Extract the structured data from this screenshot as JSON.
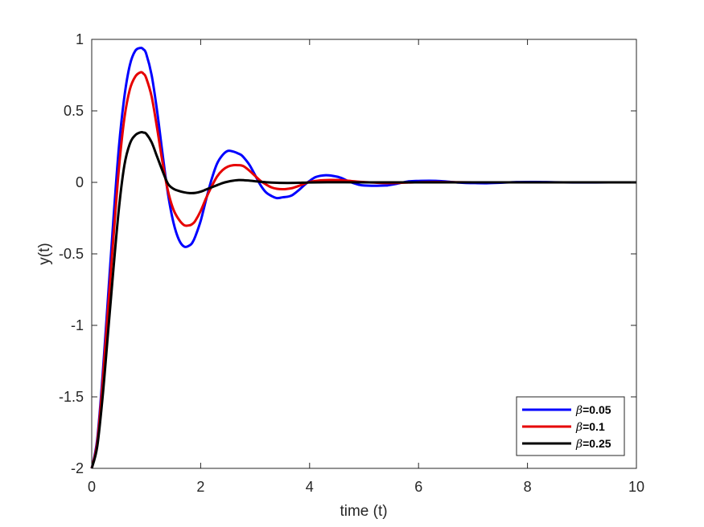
{
  "chart_data": {
    "type": "line",
    "title": "",
    "xlabel": "time (t)",
    "ylabel": "y(t)",
    "xlim": [
      0,
      10
    ],
    "ylim": [
      -2,
      1
    ],
    "xticks": [
      "0",
      "2",
      "4",
      "6",
      "8",
      "10"
    ],
    "xtick_values": [
      0,
      2,
      4,
      6,
      8,
      10
    ],
    "yticks": [
      "-2",
      "-1.5",
      "-1",
      "-0.5",
      "0",
      "0.5",
      "1"
    ],
    "ytick_values": [
      -2,
      -1.5,
      -1,
      -0.5,
      0,
      0.5,
      1
    ],
    "grid": false,
    "box": true,
    "legend_position": "bottom-right",
    "series": [
      {
        "name": "β=0.05",
        "legend_symbol": "β",
        "legend_value": "=0.05",
        "color": "#0000ff",
        "x": [
          0,
          0.1,
          0.2,
          0.3,
          0.4,
          0.5,
          0.6,
          0.7,
          0.8,
          0.9,
          0.95,
          1.0,
          1.1,
          1.2,
          1.3,
          1.4,
          1.5,
          1.6,
          1.7,
          1.8,
          1.85,
          1.9,
          2.0,
          2.1,
          2.2,
          2.3,
          2.4,
          2.5,
          2.6,
          2.7,
          2.75,
          2.8,
          2.9,
          3.0,
          3.1,
          3.2,
          3.3,
          3.4,
          3.5,
          3.6,
          3.65,
          3.7,
          3.8,
          3.9,
          4.0,
          4.1,
          4.2,
          4.3,
          4.4,
          4.5,
          4.55,
          4.6,
          4.7,
          4.8,
          4.9,
          5.0,
          5.2,
          5.4,
          5.45,
          5.6,
          5.8,
          6.0,
          6.2,
          6.35,
          6.5,
          6.8,
          7.0,
          7.25,
          7.5,
          7.8,
          8.15,
          8.5,
          9.0,
          9.5,
          10.0
        ],
        "y": [
          -2.0,
          -1.8,
          -1.35,
          -0.8,
          -0.25,
          0.25,
          0.6,
          0.82,
          0.92,
          0.94,
          0.93,
          0.9,
          0.75,
          0.5,
          0.2,
          -0.08,
          -0.28,
          -0.4,
          -0.45,
          -0.44,
          -0.42,
          -0.38,
          -0.27,
          -0.12,
          0.02,
          0.13,
          0.19,
          0.22,
          0.215,
          0.2,
          0.19,
          0.17,
          0.12,
          0.05,
          -0.02,
          -0.07,
          -0.095,
          -0.11,
          -0.105,
          -0.1,
          -0.095,
          -0.085,
          -0.055,
          -0.02,
          0.01,
          0.035,
          0.046,
          0.05,
          0.047,
          0.04,
          0.035,
          0.028,
          0.01,
          -0.005,
          -0.016,
          -0.022,
          -0.024,
          -0.022,
          -0.02,
          -0.01,
          0.006,
          0.01,
          0.011,
          0.01,
          0.006,
          -0.003,
          -0.005,
          -0.006,
          -0.003,
          0.002,
          0.003,
          0.001,
          -0.001,
          0.0,
          0.0
        ]
      },
      {
        "name": "β=0.1",
        "legend_symbol": "β",
        "legend_value": "=0.1",
        "color": "#e60000",
        "x": [
          0,
          0.1,
          0.2,
          0.3,
          0.4,
          0.5,
          0.6,
          0.7,
          0.8,
          0.9,
          0.95,
          1.0,
          1.1,
          1.2,
          1.3,
          1.4,
          1.5,
          1.6,
          1.7,
          1.8,
          1.85,
          1.9,
          2.0,
          2.1,
          2.2,
          2.3,
          2.4,
          2.5,
          2.6,
          2.7,
          2.75,
          2.8,
          2.9,
          3.0,
          3.1,
          3.2,
          3.3,
          3.4,
          3.5,
          3.6,
          3.65,
          3.7,
          3.8,
          3.9,
          4.0,
          4.2,
          4.4,
          4.55,
          4.8,
          5.0,
          5.45,
          6.0,
          6.35,
          7.0,
          8.0,
          9.0,
          10.0
        ],
        "y": [
          -2.0,
          -1.82,
          -1.4,
          -0.88,
          -0.38,
          0.1,
          0.45,
          0.65,
          0.74,
          0.77,
          0.76,
          0.73,
          0.6,
          0.38,
          0.14,
          -0.06,
          -0.19,
          -0.26,
          -0.3,
          -0.3,
          -0.29,
          -0.27,
          -0.2,
          -0.11,
          -0.03,
          0.04,
          0.085,
          0.11,
          0.12,
          0.12,
          0.118,
          0.11,
          0.08,
          0.045,
          0.01,
          -0.015,
          -0.035,
          -0.045,
          -0.048,
          -0.045,
          -0.042,
          -0.038,
          -0.025,
          -0.01,
          0.003,
          0.014,
          0.017,
          0.016,
          0.008,
          0.002,
          -0.005,
          0.001,
          0.002,
          0.0,
          0.0,
          0.0,
          0.0
        ]
      },
      {
        "name": "β=0.25",
        "legend_symbol": "β",
        "legend_value": "=0.25",
        "color": "#000000",
        "x": [
          0,
          0.1,
          0.2,
          0.3,
          0.4,
          0.5,
          0.6,
          0.7,
          0.8,
          0.9,
          0.95,
          1.0,
          1.1,
          1.2,
          1.3,
          1.4,
          1.5,
          1.6,
          1.7,
          1.8,
          1.9,
          2.0,
          2.1,
          2.2,
          2.3,
          2.4,
          2.5,
          2.6,
          2.7,
          2.8,
          2.9,
          3.0,
          3.2,
          3.4,
          3.6,
          3.8,
          4.0,
          4.5,
          5.0,
          6.0,
          7.0,
          8.0,
          9.0,
          10.0
        ],
        "y": [
          -2.0,
          -1.85,
          -1.5,
          -1.05,
          -0.6,
          -0.18,
          0.12,
          0.27,
          0.33,
          0.35,
          0.348,
          0.34,
          0.28,
          0.18,
          0.08,
          -0.01,
          -0.045,
          -0.06,
          -0.07,
          -0.075,
          -0.074,
          -0.065,
          -0.05,
          -0.035,
          -0.02,
          -0.005,
          0.005,
          0.012,
          0.016,
          0.015,
          0.012,
          0.008,
          0.001,
          -0.003,
          -0.004,
          -0.003,
          -0.001,
          0.001,
          0.0,
          0.0,
          0.0,
          0.0,
          0.0,
          0.0
        ]
      }
    ]
  }
}
